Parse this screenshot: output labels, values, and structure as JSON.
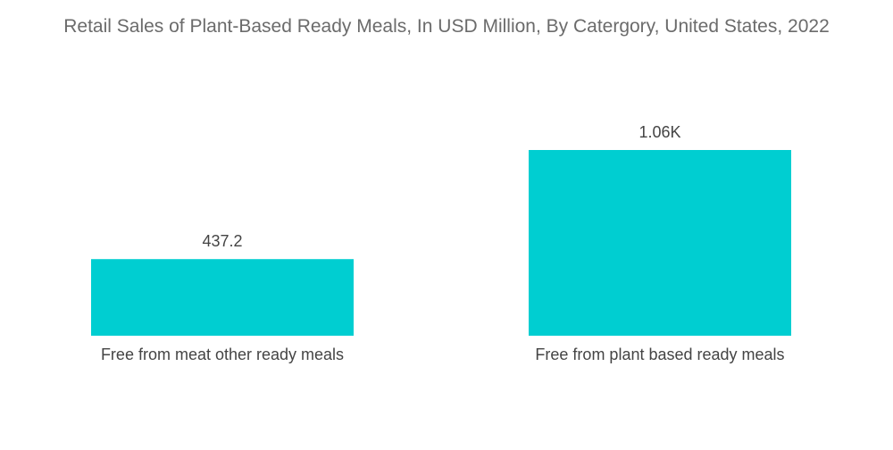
{
  "chart_data": {
    "type": "bar",
    "title": "Retail Sales of Plant-Based Ready Meals, In USD Million, By Catergory, United States, 2022",
    "categories": [
      "Free from meat other ready meals",
      "Free from plant based ready meals"
    ],
    "values": [
      437.2,
      1060
    ],
    "data_labels": [
      "437.2",
      "1.06K"
    ],
    "xlabel": "",
    "ylabel": "",
    "grid": false,
    "legend": "none",
    "bar_color": "#00CED1"
  }
}
